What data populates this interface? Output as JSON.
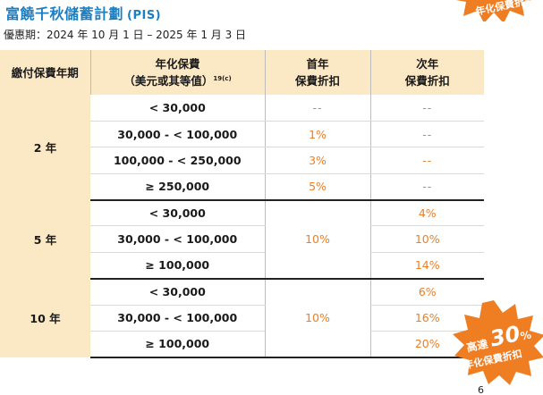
{
  "title": "富饒千秋儲蓄計劃",
  "title_tag": "(PIS)",
  "period": "優惠期：2024 年 10 月 1 日 – 2025 年 1 月 3 日",
  "headers": {
    "col1": "繳付保費年期",
    "col2_line1": "年化保費",
    "col2_line2": "（美元或其等值）",
    "col2_sup": "19(c)",
    "col3_line1": "首年",
    "col3_line2": "保費折扣",
    "col4_line1": "次年",
    "col4_line2": "保費折扣"
  },
  "groups": [
    {
      "term": "2 年",
      "rows": [
        {
          "range": "< 30,000",
          "first": "--",
          "second": "--"
        },
        {
          "range": "30,000 - < 100,000",
          "first": "1%",
          "second": "--"
        },
        {
          "range": "100,000 - < 250,000",
          "first": "3%",
          "second": "--"
        },
        {
          "range": "≥ 250,000",
          "first": "5%",
          "second": "--"
        }
      ]
    },
    {
      "term": "5 年",
      "first": "10%",
      "rows": [
        {
          "range": "< 30,000",
          "second": "4%"
        },
        {
          "range": "30,000 - < 100,000",
          "second": "10%"
        },
        {
          "range": "≥ 100,000",
          "second": "14%"
        }
      ]
    },
    {
      "term": "10 年",
      "first": "10%",
      "rows": [
        {
          "range": "< 30,000",
          "second": "6%"
        },
        {
          "range": "30,000 - < 100,000",
          "second": "16%"
        },
        {
          "range": "≥ 100,000",
          "second": "20%"
        }
      ]
    }
  ],
  "badge": {
    "prefix": "高達",
    "value": "30",
    "unit": "%",
    "caption": "年化保費折扣",
    "top_caption_partial": "年化保費折扣"
  },
  "page_number": "6",
  "colors": {
    "accent": "#ef7d22",
    "title": "#1b7fc4",
    "header_bg": "#fbe8c4"
  }
}
